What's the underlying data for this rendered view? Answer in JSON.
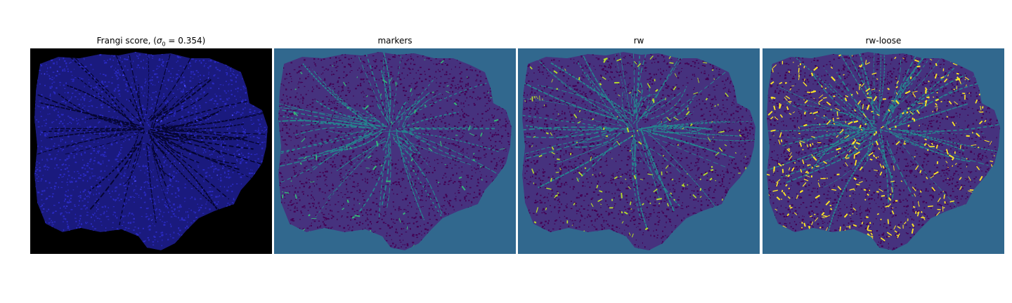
{
  "panels": [
    {
      "title_prefix": "Frangi score, (",
      "title_sigma": "σ",
      "title_sub": "0",
      "title_suffix": " = 0.354)",
      "style": "frangi",
      "colors": {
        "background": "#000000",
        "region": "#1a1a7e",
        "speckle": "#2a2ac0",
        "vein": "#050530",
        "bright": "#4a4aff"
      }
    },
    {
      "title": "markers",
      "style": "markers",
      "colors": {
        "background": "#31688e",
        "region": "#46327e",
        "speckle": "#440154",
        "vein": "#26828e",
        "bright": "#35b779"
      }
    },
    {
      "title": "rw",
      "style": "rw",
      "colors": {
        "background": "#31688e",
        "region": "#46327e",
        "speckle": "#440154",
        "vein": "#26828e",
        "bright": "#b5de2b"
      }
    },
    {
      "title": "rw-loose",
      "style": "rw-loose",
      "colors": {
        "background": "#31688e",
        "region": "#46327e",
        "speckle": "#440154",
        "vein": "#26828e",
        "bright": "#fde725"
      }
    }
  ]
}
